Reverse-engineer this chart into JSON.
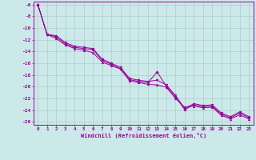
{
  "xlabel": "Windchill (Refroidissement éolien,°C)",
  "background_color": "#cce9e9",
  "grid_color": "#b0cccc",
  "line_color": "#990099",
  "xlim": [
    -0.5,
    23.5
  ],
  "ylim": [
    -26.5,
    -5.5
  ],
  "yticks": [
    -6,
    -8,
    -10,
    -12,
    -14,
    -16,
    -18,
    -20,
    -22,
    -24,
    -26
  ],
  "xticks": [
    0,
    1,
    2,
    3,
    4,
    5,
    6,
    7,
    8,
    9,
    10,
    11,
    12,
    13,
    14,
    15,
    16,
    17,
    18,
    19,
    20,
    21,
    22,
    23
  ],
  "line1_x": [
    0,
    1,
    2,
    3,
    4,
    5,
    6,
    7,
    8,
    9,
    10,
    11,
    12,
    13,
    14,
    15,
    16,
    17,
    18,
    19,
    20,
    21,
    22,
    23
  ],
  "line1_y": [
    -6.0,
    -11.1,
    -11.5,
    -12.7,
    -13.3,
    -13.5,
    -13.7,
    -15.5,
    -16.2,
    -16.9,
    -18.8,
    -19.1,
    -19.3,
    -17.5,
    -19.9,
    -21.7,
    -23.9,
    -23.1,
    -23.4,
    -23.3,
    -24.7,
    -25.3,
    -24.5,
    -25.3
  ],
  "line2_x": [
    0,
    1,
    2,
    3,
    4,
    5,
    6,
    7,
    8,
    9,
    10,
    11,
    12,
    13,
    14,
    15,
    16,
    17,
    18,
    19,
    20,
    21,
    22,
    23
  ],
  "line2_y": [
    -6.0,
    -11.1,
    -11.8,
    -12.9,
    -13.5,
    -13.8,
    -14.2,
    -15.8,
    -16.4,
    -17.0,
    -19.0,
    -19.3,
    -19.6,
    -19.7,
    -20.1,
    -22.0,
    -23.5,
    -23.3,
    -23.6,
    -23.5,
    -24.9,
    -25.5,
    -24.8,
    -25.5
  ],
  "line3_x": [
    0,
    1,
    2,
    3,
    4,
    5,
    6,
    7,
    8,
    9,
    10,
    11,
    12,
    13,
    14,
    15,
    16,
    17,
    18,
    19,
    20,
    21,
    22,
    23
  ],
  "line3_y": [
    -6.0,
    -11.1,
    -11.3,
    -12.5,
    -13.1,
    -13.3,
    -13.5,
    -15.3,
    -16.0,
    -16.7,
    -18.6,
    -18.9,
    -19.1,
    -18.9,
    -19.7,
    -21.5,
    -23.7,
    -22.9,
    -23.2,
    -23.1,
    -24.5,
    -25.1,
    -24.3,
    -25.1
  ]
}
